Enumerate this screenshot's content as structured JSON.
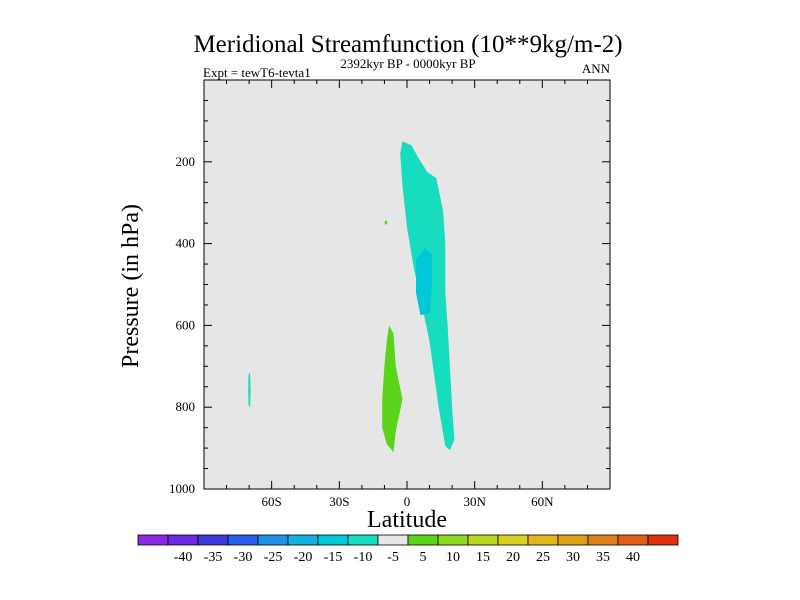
{
  "chart_data": {
    "type": "contour",
    "title": "Meridional Streamfunction (10**9kg/m-2)",
    "subtitle": "2392kyr BP - 0000kyr BP",
    "left_label": "Expt = tewT6-tevta1",
    "right_label": "ANN",
    "xlabel": "Latitude",
    "ylabel": "Pressure (in hPa)",
    "xlim": [
      -90,
      90
    ],
    "ylim": [
      1000,
      0
    ],
    "x_ticks": [
      {
        "value": -60,
        "label": "60S"
      },
      {
        "value": -30,
        "label": "30S"
      },
      {
        "value": 0,
        "label": "0"
      },
      {
        "value": 30,
        "label": "30N"
      },
      {
        "value": 60,
        "label": "60N"
      }
    ],
    "y_ticks": [
      {
        "value": 200,
        "label": "200"
      },
      {
        "value": 400,
        "label": "400"
      },
      {
        "value": 600,
        "label": "600"
      },
      {
        "value": 800,
        "label": "800"
      },
      {
        "value": 1000,
        "label": "1000"
      }
    ],
    "background_color": "#e6e6e6",
    "colorbar": {
      "labels": [
        "-40",
        "-35",
        "-30",
        "-25",
        "-20",
        "-15",
        "-10",
        "-5",
        "5",
        "10",
        "15",
        "20",
        "25",
        "30",
        "35",
        "40"
      ],
      "colors": [
        "#8a2be2",
        "#6a2be2",
        "#3c3cd8",
        "#2a5ee8",
        "#1e90e8",
        "#10b0e0",
        "#00c8d8",
        "#18dcc0",
        "#e6e6e6",
        "#5ad418",
        "#8cd81c",
        "#b8d81e",
        "#d8d020",
        "#e0b81c",
        "#e0a018",
        "#e08018",
        "#e06018",
        "#e03010"
      ]
    },
    "regions": [
      {
        "name": "upper-cell-shading",
        "level": -5,
        "color": "#18dcc0",
        "points": [
          [
            -2,
            150
          ],
          [
            2,
            160
          ],
          [
            5,
            190
          ],
          [
            9,
            225
          ],
          [
            13,
            240
          ],
          [
            16,
            320
          ],
          [
            17,
            400
          ],
          [
            17,
            520
          ],
          [
            18,
            600
          ],
          [
            19,
            700
          ],
          [
            20,
            800
          ],
          [
            21,
            880
          ],
          [
            19,
            905
          ],
          [
            17,
            895
          ],
          [
            14,
            800
          ],
          [
            12,
            720
          ],
          [
            10,
            640
          ],
          [
            7,
            560
          ],
          [
            3,
            460
          ],
          [
            0,
            360
          ],
          [
            -2,
            260
          ],
          [
            -3,
            180
          ]
        ]
      },
      {
        "name": "upper-cell-core",
        "level": -10,
        "color": "#00c8d8",
        "points": [
          [
            4,
            440
          ],
          [
            8,
            410
          ],
          [
            11,
            425
          ],
          [
            11,
            510
          ],
          [
            10,
            570
          ],
          [
            6,
            575
          ],
          [
            4,
            520
          ]
        ]
      },
      {
        "name": "lower-cell",
        "level": 5,
        "color": "#5ad418",
        "points": [
          [
            -8,
            600
          ],
          [
            -6,
            620
          ],
          [
            -5,
            700
          ],
          [
            -2,
            780
          ],
          [
            -5,
            860
          ],
          [
            -6,
            910
          ],
          [
            -9,
            890
          ],
          [
            -11,
            850
          ],
          [
            -11,
            780
          ],
          [
            -10,
            700
          ],
          [
            -9,
            640
          ]
        ]
      },
      {
        "name": "south-small-cell",
        "level": -5,
        "color": "#18dcc0",
        "points": [
          [
            -70,
            715
          ],
          [
            -69.5,
            720
          ],
          [
            -69.3,
            760
          ],
          [
            -69.5,
            795
          ],
          [
            -70,
            800
          ],
          [
            -70.3,
            790
          ],
          [
            -70.4,
            760
          ],
          [
            -70.3,
            725
          ]
        ]
      },
      {
        "name": "tiny-speck",
        "level": 5,
        "color": "#5ad418",
        "points": [
          [
            -9.5,
            343
          ],
          [
            -8.8,
            345
          ],
          [
            -8.8,
            352
          ],
          [
            -9.5,
            354
          ],
          [
            -10,
            350
          ]
        ]
      }
    ]
  }
}
